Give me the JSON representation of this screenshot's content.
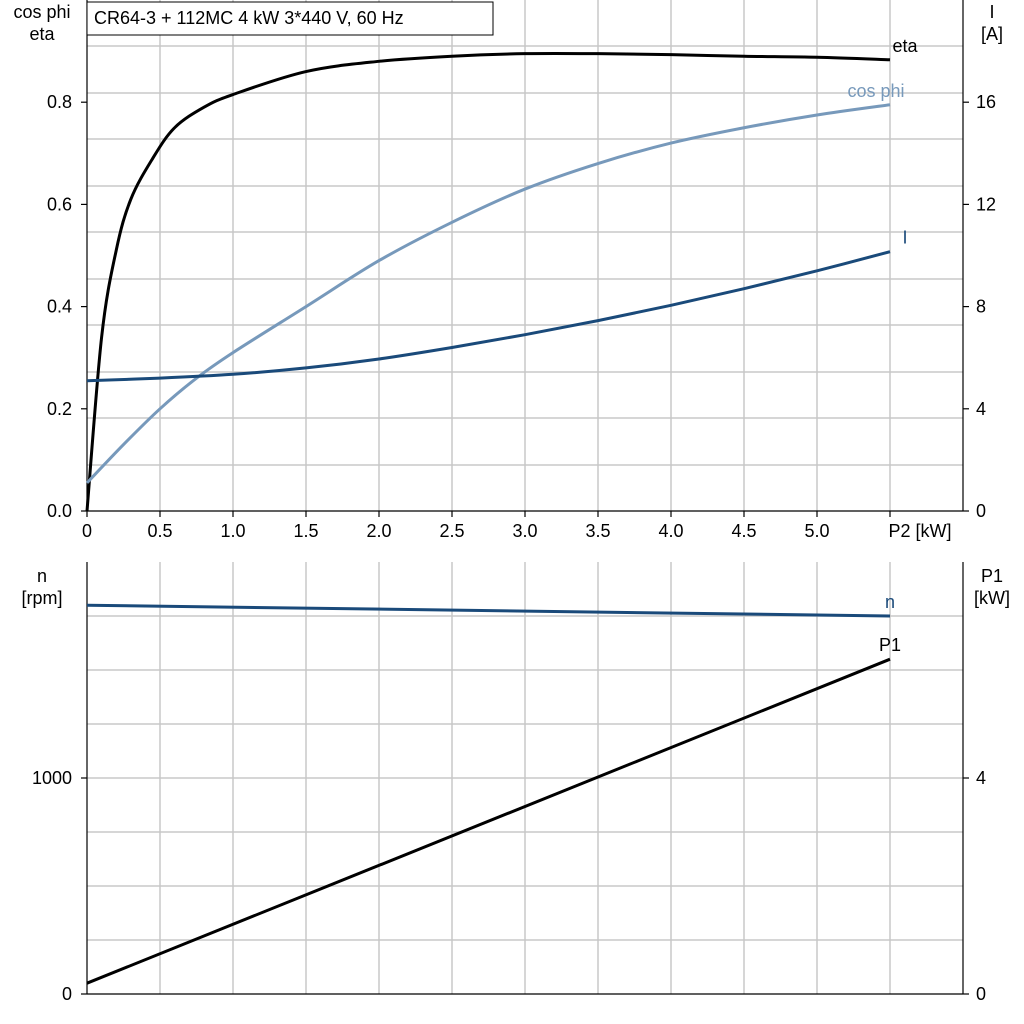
{
  "chart_data": [
    {
      "type": "line",
      "title": "CR64-3 + 112MC   4 kW   3*440 V, 60 Hz",
      "xlabel": "P2 [kW]",
      "ylabel_left": [
        "cos phi",
        "eta"
      ],
      "ylabel_right": [
        "I",
        "[A]"
      ],
      "xlim": [
        0,
        6.0
      ],
      "ylim_left": [
        0,
        1.0
      ],
      "ylim_right": [
        0,
        20
      ],
      "grid": true,
      "x_tick_labels": [
        "0",
        "0.5",
        "1.0",
        "1.5",
        "2.0",
        "2.5",
        "3.0",
        "3.5",
        "4.0",
        "4.5",
        "5.0",
        "P2 [kW]"
      ],
      "y_left_tick_labels": [
        "0.0",
        "0.2",
        "0.4",
        "0.6",
        "0.8"
      ],
      "y_left_ticks": [
        0.0,
        0.2,
        0.4,
        0.6,
        0.8
      ],
      "y_right_tick_labels": [
        "0",
        "4",
        "8",
        "12",
        "16"
      ],
      "y_right_ticks": [
        0,
        4,
        8,
        12,
        16
      ],
      "series": [
        {
          "name": "eta",
          "axis": "left",
          "color": "#000000",
          "x": [
            0,
            0.1,
            0.2,
            0.3,
            0.45,
            0.6,
            0.8,
            1.0,
            1.5,
            2.0,
            2.5,
            3.0,
            3.5,
            4.0,
            4.5,
            5.0,
            5.5
          ],
          "y": [
            0.0,
            0.34,
            0.51,
            0.61,
            0.69,
            0.75,
            0.79,
            0.815,
            0.86,
            0.88,
            0.89,
            0.895,
            0.895,
            0.893,
            0.89,
            0.888,
            0.883
          ]
        },
        {
          "name": "cos phi",
          "axis": "left",
          "color": "#7799bb",
          "x": [
            0,
            0.25,
            0.5,
            0.75,
            1.0,
            1.5,
            2.0,
            2.5,
            3.0,
            3.5,
            4.0,
            4.5,
            5.0,
            5.5
          ],
          "y": [
            0.055,
            0.13,
            0.2,
            0.26,
            0.31,
            0.4,
            0.49,
            0.565,
            0.63,
            0.68,
            0.72,
            0.75,
            0.775,
            0.795
          ]
        },
        {
          "name": "I",
          "axis": "right",
          "color": "#1a4a7a",
          "x": [
            0,
            0.5,
            1.0,
            1.5,
            2.0,
            2.5,
            3.0,
            3.5,
            4.0,
            4.5,
            5.0,
            5.5
          ],
          "y": [
            5.1,
            5.2,
            5.35,
            5.6,
            5.95,
            6.4,
            6.9,
            7.45,
            8.05,
            8.7,
            9.4,
            10.15
          ]
        }
      ]
    },
    {
      "type": "line",
      "xlim": [
        0,
        6.0
      ],
      "ylabel_left": [
        "n",
        "[rpm]"
      ],
      "ylabel_right": [
        "P1",
        "[kW]"
      ],
      "ylim_left": [
        0,
        2000
      ],
      "ylim_right": [
        0,
        8
      ],
      "grid": true,
      "y_left_tick_labels": [
        "0",
        "1000"
      ],
      "y_left_ticks": [
        0,
        1000
      ],
      "y_right_tick_labels": [
        "0",
        "4"
      ],
      "y_right_ticks": [
        0,
        4
      ],
      "series": [
        {
          "name": "n",
          "axis": "left",
          "color": "#1a4a7a",
          "x": [
            0,
            5.5
          ],
          "y": [
            1800,
            1750
          ]
        },
        {
          "name": "P1",
          "axis": "right",
          "color": "#000000",
          "x": [
            0,
            5.5
          ],
          "y": [
            0.2,
            6.2
          ]
        }
      ]
    }
  ]
}
